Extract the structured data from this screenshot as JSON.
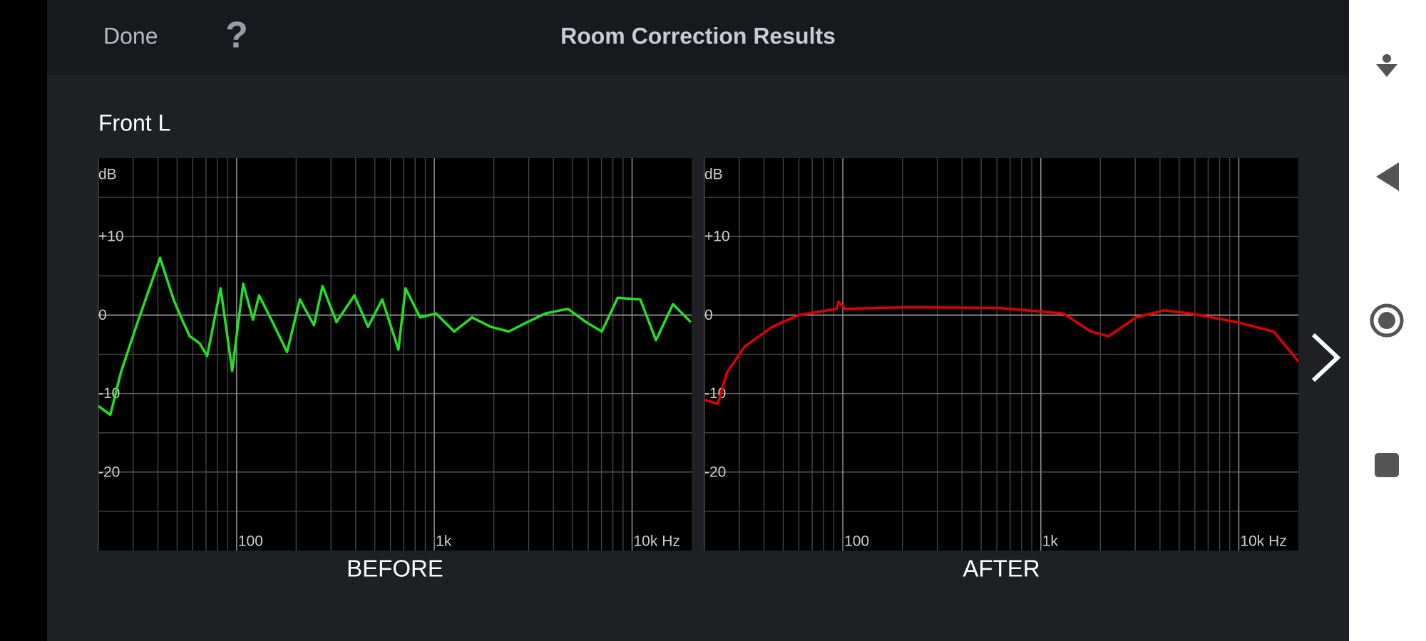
{
  "header": {
    "done": "Done",
    "help": "?",
    "title": "Room Correction Results"
  },
  "channel": "Front L",
  "chart_data": [
    {
      "type": "line",
      "title": "BEFORE",
      "y_label": "dB",
      "log_x": true,
      "xlim": [
        20,
        20000
      ],
      "ylim": [
        -30,
        20
      ],
      "xticks": [
        {
          "value": 100,
          "label": "100"
        },
        {
          "value": 1000,
          "label": "1k"
        },
        {
          "value": 10000,
          "label": "10k Hz"
        }
      ],
      "yticks": [
        {
          "value": 10,
          "label": "+10"
        },
        0,
        -10,
        -20
      ],
      "xgrid": [
        20,
        30,
        40,
        50,
        60,
        70,
        80,
        90,
        200,
        300,
        400,
        500,
        600,
        700,
        800,
        900,
        2000,
        3000,
        4000,
        5000,
        6000,
        7000,
        8000,
        9000
      ],
      "ygrid": [
        -25,
        -15,
        -5,
        5,
        15
      ],
      "x": [
        20,
        23,
        26,
        31,
        41,
        48,
        53,
        58,
        65,
        71,
        83,
        95,
        108,
        121,
        130,
        152,
        180,
        209,
        246,
        272,
        320,
        394,
        462,
        545,
        658,
        715,
        847,
        1020,
        1260,
        1550,
        1930,
        2380,
        2950,
        3640,
        4740,
        5850,
        7030,
        8450,
        11000,
        13200,
        16100,
        19800
      ],
      "series": [
        {
          "color": "#22e022",
          "values": [
            -11.6,
            -12.7,
            -7.3,
            -1.5,
            7.3,
            2.0,
            -0.6,
            -2.7,
            -3.6,
            -5.2,
            3.4,
            -7.1,
            4.0,
            -0.6,
            2.5,
            -0.9,
            -4.7,
            2.0,
            -1.3,
            3.7,
            -0.9,
            2.5,
            -1.5,
            2.0,
            -4.4,
            3.4,
            -0.3,
            0.2,
            -2.1,
            -0.3,
            -1.5,
            -2.1,
            -0.9,
            0.2,
            0.8,
            -0.9,
            -2.1,
            2.2,
            2.0,
            -3.2,
            1.4,
            -0.9
          ]
        }
      ]
    },
    {
      "type": "line",
      "title": "AFTER",
      "y_label": "dB",
      "log_x": true,
      "xlim": [
        20,
        20000
      ],
      "ylim": [
        -30,
        20
      ],
      "xticks": [
        {
          "value": 100,
          "label": "100"
        },
        {
          "value": 1000,
          "label": "1k"
        },
        {
          "value": 10000,
          "label": "10k Hz"
        }
      ],
      "yticks": [
        {
          "value": 10,
          "label": "+10"
        },
        0,
        -10,
        -20
      ],
      "xgrid": [
        20,
        30,
        40,
        50,
        60,
        70,
        80,
        90,
        200,
        300,
        400,
        500,
        600,
        700,
        800,
        900,
        2000,
        3000,
        4000,
        5000,
        6000,
        7000,
        8000,
        9000
      ],
      "ygrid": [
        -25,
        -15,
        -5,
        5,
        15
      ],
      "x": [
        20,
        23.4,
        26,
        32,
        44,
        60,
        93,
        95,
        103,
        216,
        624,
        1300,
        1790,
        2200,
        3030,
        4170,
        5720,
        9780,
        15000,
        20000
      ],
      "series": [
        {
          "color": "#e00000",
          "values": [
            -10.8,
            -11.3,
            -7.3,
            -4.0,
            -1.5,
            0,
            0.8,
            1.7,
            0.8,
            1.0,
            0.9,
            0.2,
            -2.1,
            -2.7,
            -0.3,
            0.6,
            0.2,
            -0.9,
            -2.1,
            -5.9
          ]
        }
      ]
    }
  ]
}
